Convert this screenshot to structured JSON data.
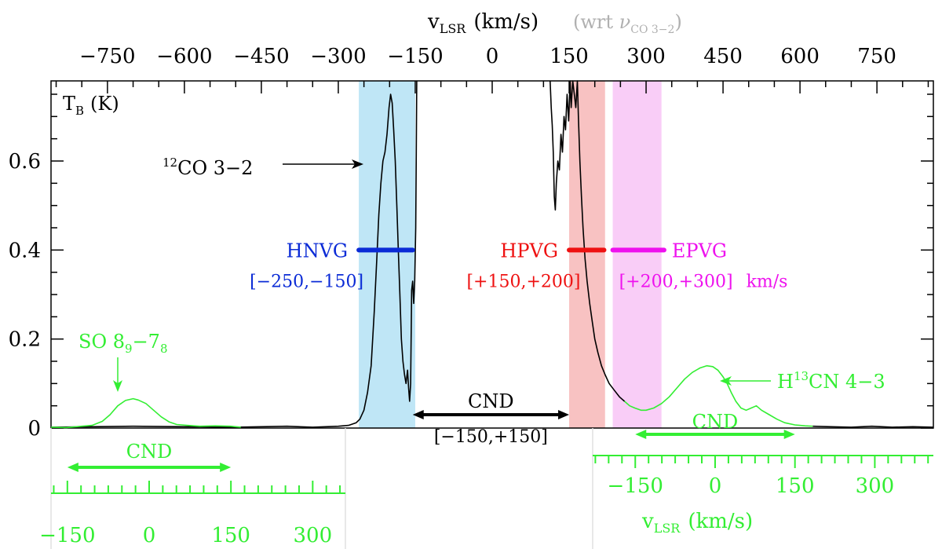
{
  "chart_data": {
    "type": "line",
    "colors": {
      "main": "#000000",
      "secondary": "#33ee33",
      "hnvg": "#0b2bd6",
      "hpvg": "#ee1111",
      "epvg": "#ee11ee",
      "band_hnvg": "#bfe6f6",
      "band_hpvg": "#f8c2c2",
      "band_epvg": "#f9cdf7",
      "upper_note": "#b0b0b0"
    },
    "top_axis": {
      "label_main": "v",
      "label_sub": "LSR",
      "label_unit": "(km/s)",
      "note_prefix": "(wrt ",
      "note_nu": "ν",
      "note_sub": "CO 3−2",
      "note_suffix": ")",
      "range": [
        -860,
        860
      ],
      "ticks": [
        {
          "v": -750,
          "label": "−750"
        },
        {
          "v": -600,
          "label": "−600"
        },
        {
          "v": -450,
          "label": "−450"
        },
        {
          "v": -300,
          "label": "−300"
        },
        {
          "v": -150,
          "label": "−150"
        },
        {
          "v": 0,
          "label": "0"
        },
        {
          "v": 150,
          "label": "150"
        },
        {
          "v": 300,
          "label": "300"
        },
        {
          "v": 450,
          "label": "450"
        },
        {
          "v": 600,
          "label": "600"
        },
        {
          "v": 750,
          "label": "750"
        }
      ]
    },
    "y_axis": {
      "label_main": "T",
      "label_sub": "B",
      "label_unit": "(K)",
      "range": [
        0,
        0.78
      ],
      "ticks": [
        {
          "v": 0,
          "label": "0"
        },
        {
          "v": 0.2,
          "label": "0.2"
        },
        {
          "v": 0.4,
          "label": "0.4"
        },
        {
          "v": 0.6,
          "label": "0.6"
        }
      ]
    },
    "bottom_left_axis": {
      "range": [
        -180,
        360
      ],
      "ticks": [
        {
          "v": -150,
          "label": "−150"
        },
        {
          "v": 0,
          "label": "0"
        },
        {
          "v": 150,
          "label": "150"
        },
        {
          "v": 300,
          "label": "300"
        }
      ]
    },
    "bottom_right_axis": {
      "label_main": "v",
      "label_sub": "LSR",
      "label_unit": "(km/s)",
      "range": [
        -230,
        410
      ],
      "ticks": [
        {
          "v": -150,
          "label": "−150"
        },
        {
          "v": 0,
          "label": "0"
        },
        {
          "v": 150,
          "label": "150"
        },
        {
          "v": 300,
          "label": "300"
        }
      ]
    },
    "bands": [
      {
        "name": "HNVG",
        "range": [
          -260,
          -150
        ]
      },
      {
        "name": "HPVG",
        "range": [
          150,
          220
        ]
      },
      {
        "name": "EPVG",
        "range": [
          235,
          330
        ]
      }
    ],
    "intervals": [
      {
        "name": "HNVG",
        "label": "HNVG",
        "range_label": "[−250,−150]",
        "range": [
          -260,
          -155
        ],
        "y": 0.4
      },
      {
        "name": "HPVG",
        "label": "HPVG",
        "range_label": "[+150,+200]",
        "range": [
          150,
          218
        ],
        "y": 0.4
      },
      {
        "name": "EPVG",
        "label": "EPVG",
        "range_label": "[+200,+300]",
        "range": [
          235,
          335
        ],
        "y": 0.4,
        "unit": "km/s"
      }
    ],
    "cnd_main": {
      "label": "CND",
      "range_label": "[−150,+150]",
      "range": [
        -155,
        150
      ]
    },
    "cnd_left": {
      "label": "CND",
      "range": [
        -150,
        150
      ]
    },
    "cnd_right": {
      "label": "CND",
      "range": [
        -150,
        150
      ]
    },
    "annotations": {
      "co_label_sup": "12",
      "co_label": "CO 3−2",
      "so_label": "SO 8",
      "so_sub1": "9",
      "so_mid": "−7",
      "so_sub2": "8",
      "h13cn_label_h": "H",
      "h13cn_label_sup": "13",
      "h13cn_label_rest": "CN 4−3"
    },
    "series": [
      {
        "name": "12CO 3-2",
        "color": "#000000",
        "points": [
          [
            -860,
            0.002
          ],
          [
            -700,
            0.004
          ],
          [
            -600,
            0.003
          ],
          [
            -500,
            0.002
          ],
          [
            -450,
            0.003
          ],
          [
            -400,
            0.004
          ],
          [
            -350,
            0.002
          ],
          [
            -300,
            0.004
          ],
          [
            -280,
            0.006
          ],
          [
            -265,
            0.012
          ],
          [
            -258,
            0.02
          ],
          [
            -250,
            0.04
          ],
          [
            -243,
            0.08
          ],
          [
            -236,
            0.14
          ],
          [
            -230,
            0.26
          ],
          [
            -225,
            0.38
          ],
          [
            -221,
            0.48
          ],
          [
            -217,
            0.55
          ],
          [
            -213,
            0.6
          ],
          [
            -209,
            0.62
          ],
          [
            -205,
            0.66
          ],
          [
            -201,
            0.72
          ],
          [
            -198,
            0.75
          ],
          [
            -195,
            0.73
          ],
          [
            -192,
            0.67
          ],
          [
            -189,
            0.6
          ],
          [
            -186,
            0.5
          ],
          [
            -183,
            0.4
          ],
          [
            -180,
            0.3
          ],
          [
            -177,
            0.2
          ],
          [
            -174,
            0.15
          ],
          [
            -171,
            0.12
          ],
          [
            -168,
            0.1
          ],
          [
            -165,
            0.13
          ],
          [
            -163,
            0.09
          ],
          [
            -161,
            0.06
          ],
          [
            -159,
            0.1
          ],
          [
            -157,
            0.31
          ],
          [
            -155,
            0.33
          ],
          [
            -153,
            0.28
          ],
          [
            -151,
            0.33
          ],
          [
            -149,
            0.45
          ],
          [
            -148,
            0.62
          ],
          [
            -147,
            0.78
          ]
        ]
      },
      {
        "name": "12CO 3-2 (red wing)",
        "color": "#000000",
        "points": [
          [
            113,
            0.78
          ],
          [
            115,
            0.72
          ],
          [
            117,
            0.68
          ],
          [
            119,
            0.62
          ],
          [
            121,
            0.52
          ],
          [
            123,
            0.49
          ],
          [
            125,
            0.55
          ],
          [
            128,
            0.6
          ],
          [
            131,
            0.58
          ],
          [
            134,
            0.66
          ],
          [
            137,
            0.62
          ],
          [
            140,
            0.7
          ],
          [
            143,
            0.67
          ],
          [
            146,
            0.75
          ],
          [
            149,
            0.69
          ],
          [
            152,
            0.78
          ],
          [
            154,
            0.72
          ],
          [
            157,
            0.78
          ],
          [
            160,
            0.75
          ],
          [
            163,
            0.72
          ],
          [
            166,
            0.78
          ],
          [
            168,
            0.7
          ],
          [
            171,
            0.6
          ],
          [
            174,
            0.52
          ],
          [
            177,
            0.45
          ],
          [
            181,
            0.38
          ],
          [
            185,
            0.33
          ],
          [
            190,
            0.28
          ],
          [
            195,
            0.24
          ],
          [
            200,
            0.2
          ],
          [
            206,
            0.17
          ],
          [
            213,
            0.14
          ],
          [
            220,
            0.12
          ],
          [
            228,
            0.1
          ],
          [
            238,
            0.085
          ],
          [
            248,
            0.07
          ],
          [
            258,
            0.06
          ]
        ]
      },
      {
        "name": "SO 8_9-7_8",
        "color": "#33ee33",
        "points": [
          [
            -860,
            0.002
          ],
          [
            -830,
            0.001
          ],
          [
            -800,
            0.004
          ],
          [
            -780,
            0.006
          ],
          [
            -760,
            0.015
          ],
          [
            -745,
            0.03
          ],
          [
            -730,
            0.05
          ],
          [
            -715,
            0.062
          ],
          [
            -700,
            0.066
          ],
          [
            -690,
            0.063
          ],
          [
            -675,
            0.055
          ],
          [
            -660,
            0.04
          ],
          [
            -645,
            0.025
          ],
          [
            -630,
            0.014
          ],
          [
            -615,
            0.008
          ],
          [
            -595,
            0.006
          ],
          [
            -570,
            0.004
          ],
          [
            -540,
            0.005
          ],
          [
            -510,
            0.004
          ],
          [
            -490,
            0.002
          ]
        ]
      },
      {
        "name": "H13CN 4-3",
        "color": "#33ee33",
        "points": [
          [
            258,
            0.06
          ],
          [
            268,
            0.05
          ],
          [
            278,
            0.045
          ],
          [
            290,
            0.04
          ],
          [
            300,
            0.04
          ],
          [
            315,
            0.045
          ],
          [
            330,
            0.055
          ],
          [
            345,
            0.07
          ],
          [
            360,
            0.09
          ],
          [
            375,
            0.11
          ],
          [
            390,
            0.125
          ],
          [
            405,
            0.135
          ],
          [
            418,
            0.14
          ],
          [
            430,
            0.138
          ],
          [
            440,
            0.13
          ],
          [
            450,
            0.115
          ],
          [
            458,
            0.1
          ],
          [
            466,
            0.08
          ],
          [
            475,
            0.06
          ],
          [
            485,
            0.045
          ],
          [
            495,
            0.04
          ],
          [
            505,
            0.045
          ],
          [
            515,
            0.05
          ],
          [
            525,
            0.04
          ],
          [
            540,
            0.03
          ],
          [
            555,
            0.02
          ],
          [
            570,
            0.012
          ],
          [
            590,
            0.007
          ],
          [
            610,
            0.005
          ],
          [
            625,
            0.004
          ]
        ]
      },
      {
        "name": "12CO 3-2 (far red baseline)",
        "color": "#000000",
        "points": [
          [
            625,
            0.004
          ],
          [
            660,
            0.003
          ],
          [
            700,
            0.002
          ],
          [
            740,
            0.004
          ],
          [
            780,
            0.002
          ],
          [
            820,
            0.003
          ],
          [
            860,
            0.002
          ]
        ]
      }
    ]
  }
}
